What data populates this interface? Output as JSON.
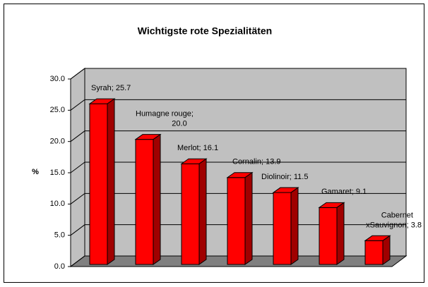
{
  "chart_data": {
    "type": "bar",
    "title": "Wichtigste rote Spezialitäten",
    "ylabel": "%",
    "values": [
      25.7,
      20.0,
      16.1,
      13.9,
      11.5,
      9.1,
      3.8
    ],
    "value_labels": [
      "Syrah; 25.7",
      "Humagne rouge; 20.0",
      "Merlot; 16.1",
      "Cornalin; 13.9",
      "Diolinoir; 11.5",
      "Gamaret; 9.1",
      "Cabernet xSauvignon; 3.8"
    ],
    "color": "#ff0000",
    "ylim": [
      0,
      30
    ],
    "yticks": [
      {
        "value": 0,
        "label": "0.0"
      },
      {
        "value": 5,
        "label": "5.0"
      },
      {
        "value": 10,
        "label": "10.0"
      },
      {
        "value": 15,
        "label": "15.0"
      },
      {
        "value": 20,
        "label": "20.0"
      },
      {
        "value": 25,
        "label": "25.0"
      },
      {
        "value": 30,
        "label": "30.0"
      }
    ],
    "grid": true
  }
}
